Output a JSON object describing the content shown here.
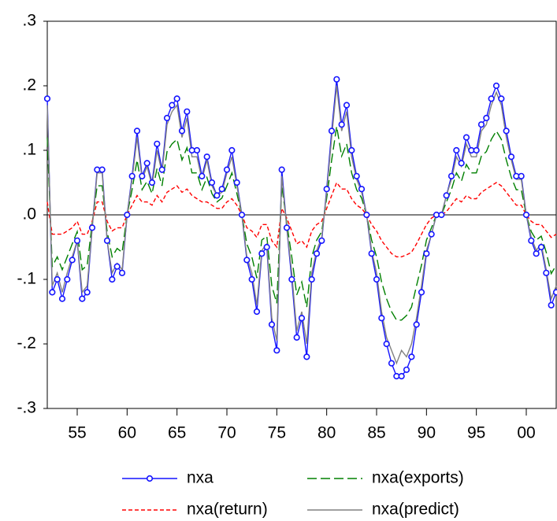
{
  "chart_data": {
    "type": "line",
    "x": [
      1952,
      1952.5,
      1953,
      1953.5,
      1954,
      1954.5,
      1955,
      1955.5,
      1956,
      1956.5,
      1957,
      1957.5,
      1958,
      1958.5,
      1959,
      1959.5,
      1960,
      1960.5,
      1961,
      1961.5,
      1962,
      1962.5,
      1963,
      1963.5,
      1964,
      1964.5,
      1965,
      1965.5,
      1966,
      1966.5,
      1967,
      1967.5,
      1968,
      1968.5,
      1969,
      1969.5,
      1970,
      1970.5,
      1971,
      1971.5,
      1972,
      1972.5,
      1973,
      1973.5,
      1974,
      1974.5,
      1975,
      1975.5,
      1976,
      1976.5,
      1977,
      1977.5,
      1978,
      1978.5,
      1979,
      1979.5,
      1980,
      1980.5,
      1981,
      1981.5,
      1982,
      1982.5,
      1983,
      1983.5,
      1984,
      1984.5,
      1985,
      1985.5,
      1986,
      1986.5,
      1987,
      1987.5,
      1988,
      1988.5,
      1989,
      1989.5,
      1990,
      1990.5,
      1991,
      1991.5,
      1992,
      1992.5,
      1993,
      1993.5,
      1994,
      1994.5,
      1995,
      1995.5,
      1996,
      1996.5,
      1997,
      1997.5,
      1998,
      1998.5,
      1999,
      1999.5,
      2000,
      2000.5,
      2001,
      2001.5,
      2002,
      2002.5,
      2003
    ],
    "series": [
      {
        "name": "nxa",
        "color": "#1414ff",
        "line_style": "solid",
        "marker": "circle",
        "values": [
          0.18,
          -0.12,
          -0.1,
          -0.13,
          -0.1,
          -0.07,
          -0.04,
          -0.13,
          -0.12,
          -0.02,
          0.07,
          0.07,
          -0.04,
          -0.1,
          -0.08,
          -0.09,
          0,
          0.06,
          0.13,
          0.06,
          0.08,
          0.05,
          0.11,
          0.07,
          0.15,
          0.17,
          0.18,
          0.13,
          0.16,
          0.1,
          0.1,
          0.06,
          0.09,
          0.05,
          0.03,
          0.04,
          0.07,
          0.1,
          0.05,
          0,
          -0.07,
          -0.1,
          -0.15,
          -0.06,
          -0.05,
          -0.17,
          -0.21,
          0.07,
          -0.02,
          -0.1,
          -0.19,
          -0.16,
          -0.22,
          -0.1,
          -0.06,
          -0.04,
          0.04,
          0.13,
          0.21,
          0.14,
          0.17,
          0.1,
          0.06,
          0.04,
          0,
          -0.06,
          -0.1,
          -0.16,
          -0.2,
          -0.23,
          -0.25,
          -0.25,
          -0.24,
          -0.22,
          -0.17,
          -0.12,
          -0.06,
          -0.03,
          0,
          0,
          0.03,
          0.06,
          0.1,
          0.08,
          0.12,
          0.1,
          0.1,
          0.14,
          0.15,
          0.18,
          0.2,
          0.18,
          0.13,
          0.09,
          0.06,
          0.06,
          0,
          -0.04,
          -0.06,
          -0.05,
          -0.09,
          -0.14,
          -0.12
        ]
      },
      {
        "name": "nxa(exports)",
        "color": "#008000",
        "line_style": "dashed",
        "values": [
          0.12,
          -0.08,
          -0.065,
          -0.085,
          -0.065,
          -0.045,
          -0.026,
          -0.085,
          -0.078,
          -0.013,
          0.045,
          0.045,
          -0.026,
          -0.065,
          -0.052,
          -0.058,
          0,
          0.039,
          0.085,
          0.039,
          0.052,
          0.033,
          0.072,
          0.045,
          0.098,
          0.11,
          0.117,
          0.085,
          0.104,
          0.065,
          0.065,
          0.039,
          0.058,
          0.033,
          0.02,
          0.026,
          0.045,
          0.065,
          0.033,
          0,
          -0.045,
          -0.065,
          -0.098,
          -0.039,
          -0.033,
          -0.11,
          -0.137,
          0.045,
          -0.013,
          -0.065,
          -0.124,
          -0.104,
          -0.143,
          -0.065,
          -0.039,
          -0.026,
          0.026,
          0.085,
          0.137,
          0.091,
          0.11,
          0.065,
          0.039,
          0.026,
          0,
          -0.039,
          -0.065,
          -0.104,
          -0.13,
          -0.15,
          -0.163,
          -0.163,
          -0.156,
          -0.143,
          -0.11,
          -0.078,
          -0.039,
          -0.02,
          0,
          0,
          0.02,
          0.039,
          0.065,
          0.052,
          0.078,
          0.065,
          0.065,
          0.091,
          0.098,
          0.117,
          0.13,
          0.117,
          0.085,
          0.058,
          0.039,
          0.039,
          0,
          -0.026,
          -0.039,
          -0.033,
          -0.058,
          -0.091,
          -0.078
        ]
      },
      {
        "name": "nxa(return)",
        "color": "#ff0000",
        "line_style": "dotted",
        "values": [
          0.02,
          -0.03,
          -0.03,
          -0.03,
          -0.025,
          -0.02,
          -0.01,
          -0.03,
          -0.03,
          -0.01,
          0.02,
          0.02,
          -0.01,
          -0.025,
          -0.02,
          -0.02,
          0,
          0.015,
          0.03,
          0.02,
          0.02,
          0.015,
          0.03,
          0.02,
          0.035,
          0.04,
          0.045,
          0.035,
          0.04,
          0.03,
          0.025,
          0.02,
          0.02,
          0.015,
          0.01,
          0.01,
          0.02,
          0.025,
          0.015,
          0,
          -0.02,
          -0.025,
          -0.035,
          -0.015,
          -0.015,
          -0.04,
          -0.05,
          0.01,
          -0.005,
          -0.025,
          -0.045,
          -0.04,
          -0.05,
          -0.025,
          -0.015,
          -0.01,
          0.01,
          0.03,
          0.05,
          0.04,
          0.04,
          0.025,
          0.015,
          0.01,
          0,
          -0.015,
          -0.025,
          -0.04,
          -0.05,
          -0.06,
          -0.065,
          -0.065,
          -0.062,
          -0.058,
          -0.045,
          -0.03,
          -0.015,
          -0.005,
          0,
          0,
          0.005,
          0.015,
          0.025,
          0.02,
          0.03,
          0.025,
          0.025,
          0.035,
          0.04,
          0.045,
          0.05,
          0.045,
          0.035,
          0.025,
          0.015,
          0.015,
          0,
          -0.01,
          -0.015,
          -0.015,
          -0.025,
          -0.035,
          -0.03
        ]
      },
      {
        "name": "nxa(predict)",
        "color": "#808080",
        "line_style": "solid",
        "values": [
          0.17,
          -0.11,
          -0.09,
          -0.12,
          -0.09,
          -0.065,
          -0.04,
          -0.12,
          -0.11,
          -0.02,
          0.065,
          0.065,
          -0.04,
          -0.09,
          -0.075,
          -0.085,
          0,
          0.055,
          0.12,
          0.055,
          0.075,
          0.045,
          0.1,
          0.065,
          0.14,
          0.16,
          0.17,
          0.12,
          0.15,
          0.09,
          0.09,
          0.055,
          0.085,
          0.045,
          0.03,
          0.035,
          0.065,
          0.09,
          0.045,
          0,
          -0.065,
          -0.09,
          -0.14,
          -0.055,
          -0.045,
          -0.16,
          -0.195,
          0.06,
          -0.02,
          -0.09,
          -0.18,
          -0.15,
          -0.2,
          -0.09,
          -0.055,
          -0.035,
          0.035,
          0.12,
          0.2,
          0.13,
          0.16,
          0.09,
          0.055,
          0.035,
          0,
          -0.055,
          -0.09,
          -0.15,
          -0.19,
          -0.21,
          -0.23,
          -0.21,
          -0.22,
          -0.2,
          -0.16,
          -0.11,
          -0.055,
          -0.03,
          0,
          0,
          0.03,
          0.055,
          0.09,
          0.075,
          0.11,
          0.09,
          0.09,
          0.13,
          0.14,
          0.17,
          0.19,
          0.17,
          0.12,
          0.085,
          0.055,
          0.055,
          0,
          -0.035,
          -0.055,
          -0.045,
          -0.085,
          -0.13,
          -0.11
        ]
      }
    ],
    "xlim": [
      1952,
      2003
    ],
    "xticks": [
      {
        "value": 1955,
        "label": "55"
      },
      {
        "value": 1960,
        "label": "60"
      },
      {
        "value": 1965,
        "label": "65"
      },
      {
        "value": 1970,
        "label": "70"
      },
      {
        "value": 1975,
        "label": "75"
      },
      {
        "value": 1980,
        "label": "80"
      },
      {
        "value": 1985,
        "label": "85"
      },
      {
        "value": 1990,
        "label": "90"
      },
      {
        "value": 1995,
        "label": "95"
      },
      {
        "value": 2000,
        "label": "00"
      }
    ],
    "ylim": [
      -0.3,
      0.3
    ],
    "yticks": [
      {
        "value": -0.3,
        "label": "-.3"
      },
      {
        "value": -0.2,
        "label": "-.2"
      },
      {
        "value": -0.1,
        "label": "-.1"
      },
      {
        "value": 0,
        "label": ".0"
      },
      {
        "value": 0.1,
        "label": ".1"
      },
      {
        "value": 0.2,
        "label": ".2"
      },
      {
        "value": 0.3,
        "label": ".3"
      }
    ],
    "legend": "bottom"
  }
}
